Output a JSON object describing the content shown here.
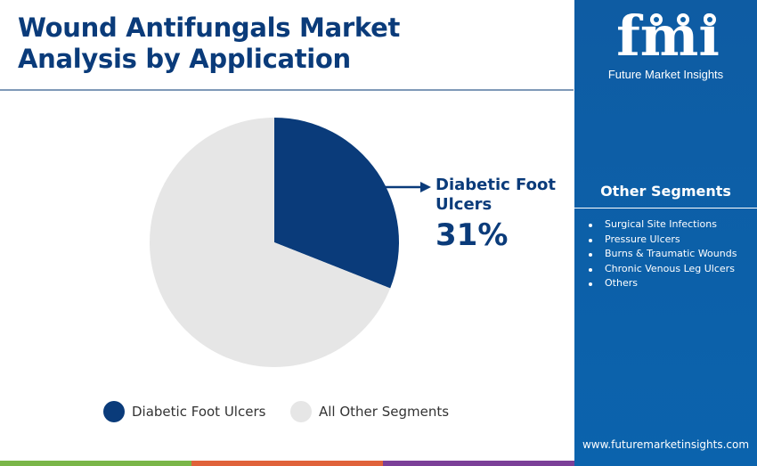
{
  "header": {
    "title_line1": "Wound Antifungals Market",
    "title_line2": "Analysis by Application"
  },
  "callout": {
    "label_line1": "Diabetic Foot",
    "label_line2": "Ulcers",
    "value": "31%"
  },
  "chart_data": {
    "type": "pie",
    "slices": [
      {
        "label": "Diabetic Foot Ulcers",
        "value": 31,
        "color": "#0a3b7a"
      },
      {
        "label": "All Other Segments",
        "value": 69,
        "color": "#e6e6e6"
      }
    ],
    "legend": [
      "Diabetic Foot Ulcers",
      "All Other Segments"
    ],
    "legend_placement": "bottom"
  },
  "side_panel": {
    "logo_text": "fmi",
    "logo_subtitle": "Future Market Insights",
    "segments_title": "Other Segments",
    "segments": [
      "Surgical Site Infections",
      "Pressure Ulcers",
      "Burns & Traumatic Wounds",
      "Chronic Venous Leg Ulcers",
      "Others"
    ],
    "website": "www.futuremarketinsights.com"
  },
  "colors": {
    "primary": "#0a3b7a",
    "other": "#e6e6e6",
    "panel": "#0b5ea6",
    "bar": [
      "#7ab648",
      "#e0623a",
      "#7b3f98"
    ]
  }
}
